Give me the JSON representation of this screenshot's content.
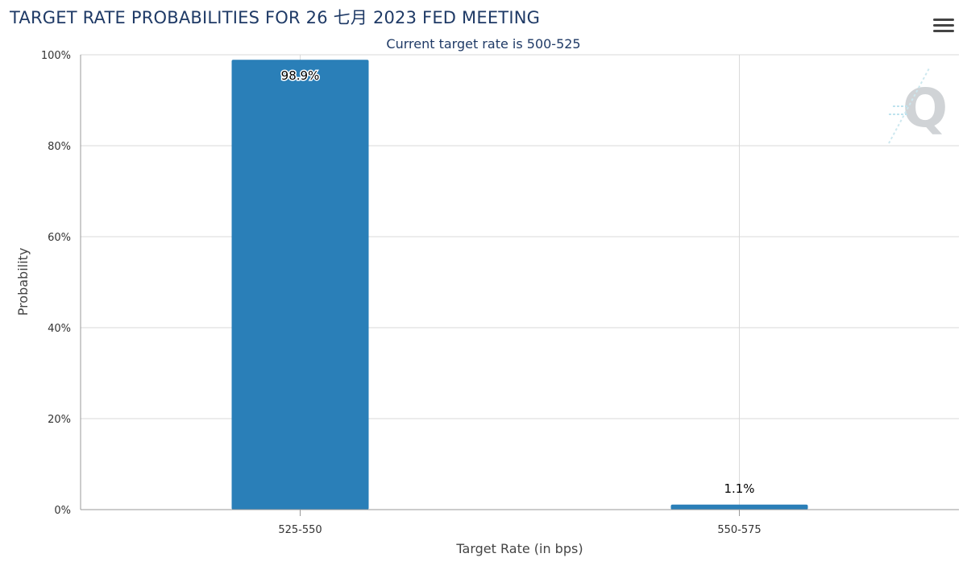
{
  "header": {
    "title": "TARGET RATE PROBABILITIES FOR 26 七月 2023 FED MEETING",
    "subtitle": "Current target rate is 500-525"
  },
  "toolbar": {
    "menu_icon": "hamburger-menu-icon"
  },
  "watermark": {
    "letter": "Q",
    "icon": "quikstrike-logo-icon"
  },
  "colors": {
    "bar": "#2a7fb8",
    "grid": "#d9d9d9",
    "axis": "#999999",
    "title": "#1f3a66"
  },
  "chart_data": {
    "type": "bar",
    "title": "TARGET RATE PROBABILITIES FOR 26 七月 2023 FED MEETING",
    "subtitle": "Current target rate is 500-525",
    "xlabel": "Target Rate (in bps)",
    "ylabel": "Probability",
    "categories": [
      "525-550",
      "550-575"
    ],
    "values": [
      98.9,
      1.1
    ],
    "data_labels": [
      "98.9%",
      "1.1%"
    ],
    "ylim": [
      0,
      100
    ],
    "yticks": [
      0,
      20,
      40,
      60,
      80,
      100
    ],
    "ytick_labels": [
      "0%",
      "20%",
      "40%",
      "60%",
      "80%",
      "100%"
    ],
    "grid": true,
    "legend": "none"
  }
}
